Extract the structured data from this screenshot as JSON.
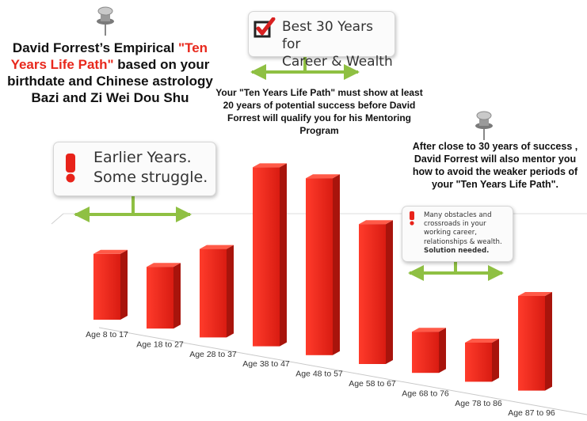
{
  "title": {
    "part1": "David Forrest’s Empirical ",
    "highlight": "\"Ten Years Life Path\"",
    "part2": " based on your birthdate and Chinese astrology Bazi and Zi Wei Dou Shu"
  },
  "callouts": {
    "best": {
      "icon": "checkbox-check-icon",
      "line1": "Best 30 Years for",
      "line2": "Career & Wealth"
    },
    "earlier": {
      "icon": "exclamation-icon",
      "line1": "Earlier Years.",
      "line2": "Some struggle."
    },
    "obstacles": {
      "icon": "exclamation-icon",
      "lines": [
        "Many obstacles and",
        "crossroads in your",
        "working career,",
        "relationships & wealth."
      ],
      "bold_line": "Solution needed."
    }
  },
  "notes": {
    "mentoring": "Your \"Ten Years Life Path\" must show at least 20 years of potential success before David Forrest will qualify you for his Mentoring Program",
    "after_success": "After close to 30 years of success , David Forrest will also mentor you how to avoid the weaker periods of your \"Ten Years Life Path\"."
  },
  "colors": {
    "bar": "#e8231a",
    "highlight": "#e8281c",
    "arrow": "#8fc043",
    "check": "#d82020"
  },
  "chart_data": {
    "type": "bar",
    "categories": [
      "Age 8 to 17",
      "Age 18 to 27",
      "Age 28 to 37",
      "Age 38 to 47",
      "Age 48 to 57",
      "Age 58 to 67",
      "Age 68 to 76",
      "Age 78 to 86",
      "Age 87 to 96"
    ],
    "values": [
      32,
      30,
      43,
      87,
      86,
      68,
      20,
      19,
      46
    ],
    "title": "",
    "xlabel": "",
    "ylabel": "",
    "ylim": [
      0,
      100
    ]
  }
}
